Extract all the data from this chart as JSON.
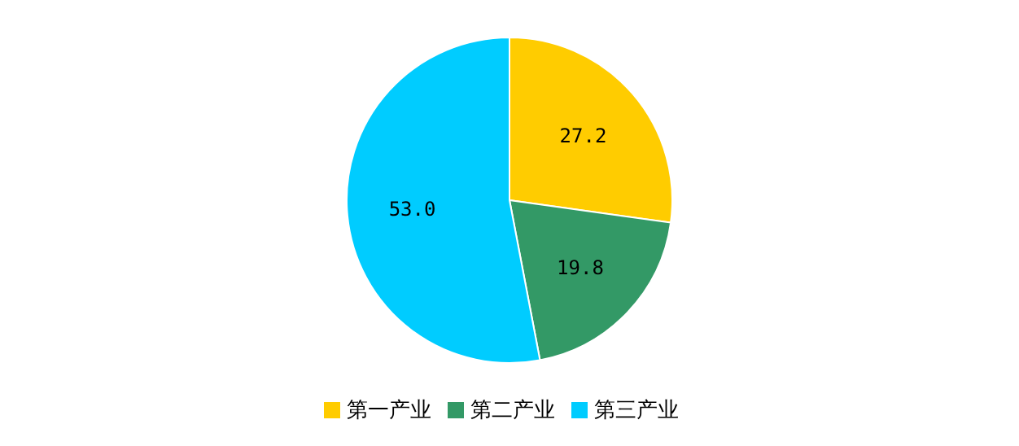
{
  "chart_data": {
    "type": "pie",
    "categories": [
      "第一产业",
      "第二产业",
      "第三产业"
    ],
    "values": [
      27.2,
      19.8,
      53.0
    ],
    "value_labels": [
      "27.2",
      "19.8",
      "53.0"
    ],
    "colors": [
      "#ffcc00",
      "#339966",
      "#00ccff"
    ],
    "legend": "bottom"
  }
}
